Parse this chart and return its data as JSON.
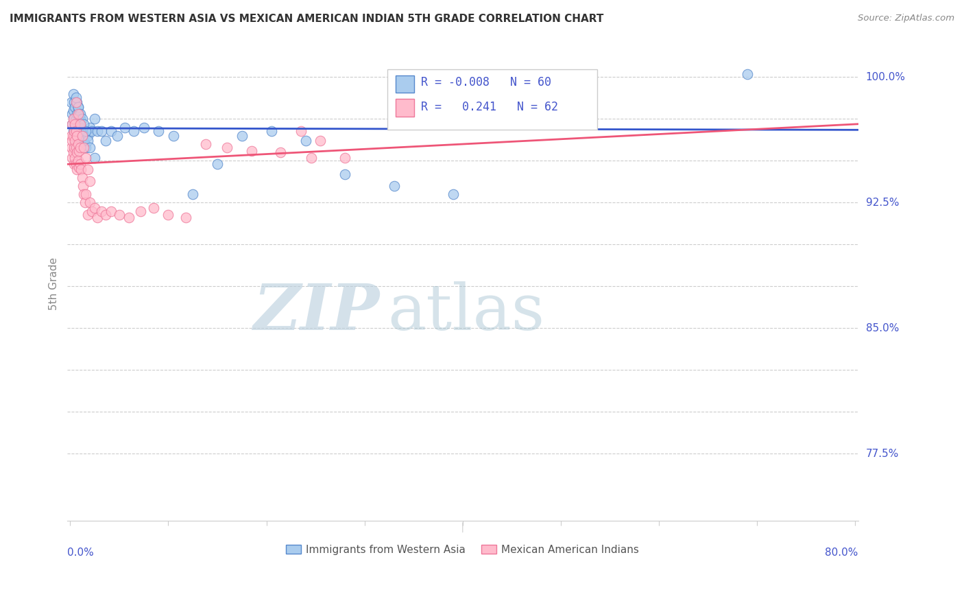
{
  "title": "IMMIGRANTS FROM WESTERN ASIA VS MEXICAN AMERICAN INDIAN 5TH GRADE CORRELATION CHART",
  "source": "Source: ZipAtlas.com",
  "ylabel": "5th Grade",
  "xlim": [
    -0.003,
    0.803
  ],
  "ylim": [
    0.735,
    1.018
  ],
  "legend_r_blue": "-0.008",
  "legend_n_blue": "60",
  "legend_r_pink": "0.241",
  "legend_n_pink": "62",
  "blue_fill": "#AACCEE",
  "blue_edge": "#5588CC",
  "pink_fill": "#FFBBCC",
  "pink_edge": "#EE7799",
  "blue_trend": "#3355CC",
  "pink_trend": "#EE5577",
  "label_color": "#4455CC",
  "title_color": "#333333",
  "source_color": "#888888",
  "watermark_zip": "ZIP",
  "watermark_atlas": "atlas",
  "watermark_color_zip": "#BBCCDD",
  "watermark_color_atlas": "#AABBCC",
  "grid_color": "#CCCCCC",
  "ytick_vals": [
    0.775,
    0.8,
    0.825,
    0.85,
    0.875,
    0.9,
    0.925,
    0.95,
    0.975,
    1.0
  ],
  "ytick_right_labels": {
    "0.775": "77.5%",
    "0.850": "85.0%",
    "0.925": "92.5%",
    "1.000": "100.0%"
  },
  "blue_x": [
    0.001,
    0.002,
    0.002,
    0.003,
    0.003,
    0.003,
    0.004,
    0.004,
    0.005,
    0.005,
    0.005,
    0.006,
    0.006,
    0.007,
    0.007,
    0.007,
    0.008,
    0.008,
    0.009,
    0.009,
    0.01,
    0.01,
    0.011,
    0.012,
    0.013,
    0.014,
    0.015,
    0.016,
    0.018,
    0.02,
    0.022,
    0.025,
    0.028,
    0.032,
    0.036,
    0.042,
    0.048,
    0.056,
    0.065,
    0.075,
    0.09,
    0.105,
    0.125,
    0.15,
    0.175,
    0.205,
    0.24,
    0.28,
    0.33,
    0.39,
    0.006,
    0.008,
    0.01,
    0.012,
    0.014,
    0.016,
    0.018,
    0.02,
    0.025,
    0.69
  ],
  "blue_y": [
    0.985,
    0.978,
    0.972,
    0.99,
    0.98,
    0.968,
    0.985,
    0.975,
    0.982,
    0.97,
    0.96,
    0.975,
    0.965,
    0.985,
    0.978,
    0.968,
    0.982,
    0.972,
    0.978,
    0.968,
    0.975,
    0.965,
    0.97,
    0.968,
    0.965,
    0.962,
    0.96,
    0.958,
    0.965,
    0.97,
    0.968,
    0.975,
    0.968,
    0.968,
    0.962,
    0.968,
    0.965,
    0.97,
    0.968,
    0.97,
    0.968,
    0.965,
    0.93,
    0.948,
    0.965,
    0.968,
    0.962,
    0.942,
    0.935,
    0.93,
    0.988,
    0.982,
    0.978,
    0.975,
    0.972,
    0.968,
    0.962,
    0.958,
    0.952,
    1.002
  ],
  "pink_x": [
    0.001,
    0.001,
    0.002,
    0.002,
    0.002,
    0.003,
    0.003,
    0.003,
    0.004,
    0.004,
    0.004,
    0.005,
    0.005,
    0.005,
    0.006,
    0.006,
    0.006,
    0.007,
    0.007,
    0.007,
    0.008,
    0.008,
    0.009,
    0.009,
    0.01,
    0.01,
    0.011,
    0.012,
    0.013,
    0.014,
    0.015,
    0.016,
    0.018,
    0.02,
    0.022,
    0.025,
    0.028,
    0.032,
    0.036,
    0.042,
    0.05,
    0.06,
    0.072,
    0.085,
    0.1,
    0.118,
    0.138,
    0.16,
    0.185,
    0.214,
    0.246,
    0.28,
    0.006,
    0.008,
    0.01,
    0.012,
    0.014,
    0.016,
    0.018,
    0.02,
    0.235,
    0.255
  ],
  "pink_y": [
    0.965,
    0.958,
    0.972,
    0.962,
    0.952,
    0.975,
    0.965,
    0.955,
    0.968,
    0.958,
    0.948,
    0.972,
    0.962,
    0.952,
    0.968,
    0.958,
    0.948,
    0.965,
    0.955,
    0.945,
    0.96,
    0.95,
    0.956,
    0.946,
    0.958,
    0.948,
    0.945,
    0.94,
    0.935,
    0.93,
    0.925,
    0.93,
    0.918,
    0.925,
    0.92,
    0.922,
    0.916,
    0.92,
    0.918,
    0.92,
    0.918,
    0.916,
    0.92,
    0.922,
    0.918,
    0.916,
    0.96,
    0.958,
    0.956,
    0.955,
    0.952,
    0.952,
    0.985,
    0.978,
    0.972,
    0.965,
    0.958,
    0.952,
    0.945,
    0.938,
    0.968,
    0.962
  ],
  "blue_trend_y0": 0.9695,
  "blue_trend_y1": 0.9685,
  "pink_trend_x0": -0.003,
  "pink_trend_y0": 0.948,
  "pink_trend_x1": 0.803,
  "pink_trend_y1": 0.972
}
